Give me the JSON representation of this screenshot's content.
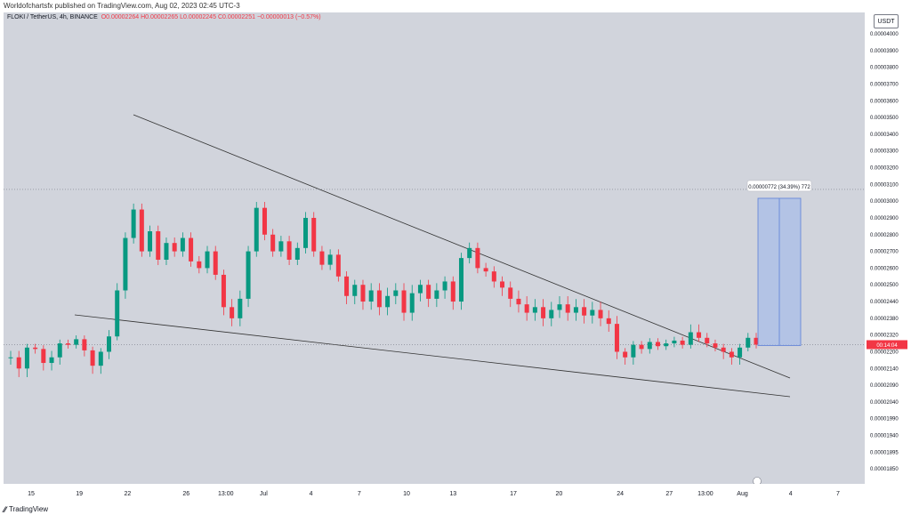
{
  "header": {
    "published_text": "Worldofchartsfx published on TradingView.com, Aug 02, 2023 02:45 UTC-3"
  },
  "legend": {
    "symbol": "FLOKI / TetherUS, 4h, BINANCE",
    "open": "O0.00002264",
    "high": "H0.00002265",
    "low": "L0.00002245",
    "close": "C0.00002251",
    "change": "−0.00000013 (−0.57%)"
  },
  "price_axis": {
    "currency": "USDT",
    "last_price_label": "00:14:04"
  },
  "measure_tool": {
    "label": "0.00000772 (34.39%) 772"
  },
  "footer": {
    "brand": "TradingView"
  },
  "colors": {
    "up": "#089981",
    "down": "#f23645",
    "background": "#d1d4dc",
    "measure_fill": "#a8bde8",
    "measure_border": "#5b7fd8",
    "trendline": "#333333"
  },
  "chart_data": {
    "type": "candlestick",
    "symbol": "FLOKI / TetherUS",
    "interval": "4h",
    "exchange": "BINANCE",
    "y_ticks": [
      "0.00004000",
      "0.00003900",
      "0.00003800",
      "0.00003700",
      "0.00003600",
      "0.00003500",
      "0.00003400",
      "0.00003300",
      "0.00003200",
      "0.00003100",
      "0.00003000",
      "0.00002900",
      "0.00002800",
      "0.00002700",
      "0.00002600",
      "0.00002500",
      "0.00002440",
      "0.00002380",
      "0.00002320",
      "0.00002200",
      "0.00002140",
      "0.00002090",
      "0.00002040",
      "0.00001990",
      "0.00001940",
      "0.00001895",
      "0.00001850",
      "0.00001806"
    ],
    "x_ticks": [
      "15",
      "19",
      "22",
      "26",
      "13:00",
      "Jul",
      "4",
      "7",
      "10",
      "13",
      "17",
      "20",
      "24",
      "27",
      "13:00",
      "Aug",
      "4",
      "7"
    ],
    "x_tick_fracs": [
      0.032,
      0.088,
      0.144,
      0.212,
      0.258,
      0.302,
      0.357,
      0.413,
      0.468,
      0.522,
      0.592,
      0.645,
      0.716,
      0.773,
      0.815,
      0.858,
      0.914,
      0.969
    ],
    "close_path": [
      2.18e-05,
      2.14e-05,
      2.23e-05,
      2.22e-05,
      2.16e-05,
      2.18e-05,
      2.26e-05,
      2.25e-05,
      2.29e-05,
      2.21e-05,
      2.15e-05,
      2.2e-05,
      2.31e-05,
      2.48e-05,
      2.78e-05,
      2.95e-05,
      2.7e-05,
      2.82e-05,
      2.65e-05,
      2.75e-05,
      2.7e-05,
      2.78e-05,
      2.64e-05,
      2.6e-05,
      2.7e-05,
      2.56e-05,
      2.42e-05,
      2.38e-05,
      2.45e-05,
      2.7e-05,
      2.96e-05,
      2.8e-05,
      2.7e-05,
      2.76e-05,
      2.65e-05,
      2.72e-05,
      2.9e-05,
      2.7e-05,
      2.62e-05,
      2.68e-05,
      2.55e-05,
      2.46e-05,
      2.5e-05,
      2.44e-05,
      2.48e-05,
      2.42e-05,
      2.46e-05,
      2.48e-05,
      2.4e-05,
      2.47e-05,
      2.5e-05,
      2.45e-05,
      2.48e-05,
      2.52e-05,
      2.44e-05,
      2.66e-05,
      2.72e-05,
      2.6e-05,
      2.58e-05,
      2.52e-05,
      2.49e-05,
      2.45e-05,
      2.43e-05,
      2.4e-05,
      2.42e-05,
      2.38e-05,
      2.41e-05,
      2.43e-05,
      2.4e-05,
      2.42e-05,
      2.39e-05,
      2.41e-05,
      2.38e-05,
      2.36e-05,
      2.2e-05,
      2.18e-05,
      2.25e-05,
      2.22e-05,
      2.27e-05,
      2.24e-05,
      2.26e-05,
      2.28e-05,
      2.25e-05,
      2.33e-05,
      2.3e-05,
      2.26e-05,
      2.23e-05,
      2.2e-05,
      2.18e-05,
      2.23e-05,
      2.3e-05,
      2.251e-05
    ],
    "last_price": 2.251e-05,
    "measure": {
      "from": 2.245e-05,
      "to": 3.017e-05,
      "change": 7.72e-06,
      "percent": 34.39
    }
  }
}
